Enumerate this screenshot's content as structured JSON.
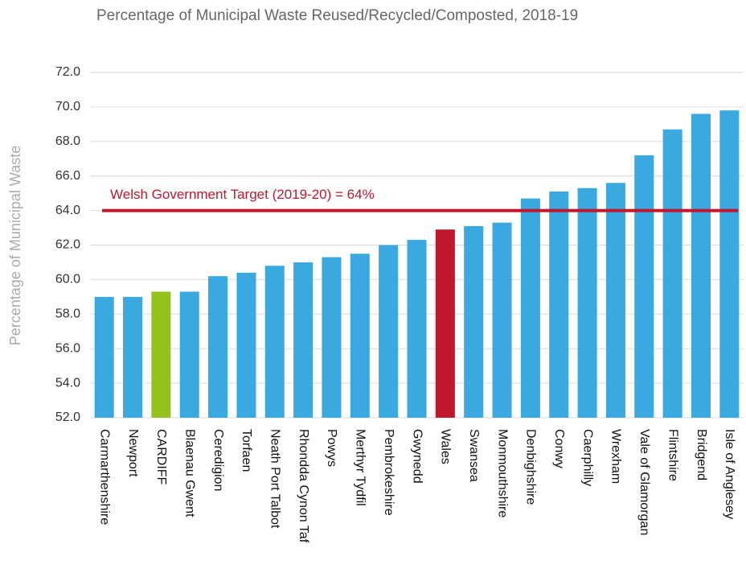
{
  "chart_data": {
    "type": "bar",
    "title": "Percentage of Municipal Waste Reused/Recycled/Composted, 2018-19",
    "ylabel": "Percentage of Municipal Waste",
    "categories": [
      "Carmarthenshire",
      "Newport",
      "CARDIFF",
      "Blaenau Gwent",
      "Ceredigion",
      "Torfaen",
      "Neath Port Talbot",
      "Rhondda Cynon Taf",
      "Powys",
      "Merthyr Tydfil",
      "Pembrokeshire",
      "Gwynedd",
      "Wales",
      "Swansea",
      "Monmouthshire",
      "Denbighshire",
      "Conwy",
      "Caerphilly",
      "Wrexham",
      "Vale of Glamorgan",
      "Flintshire",
      "Bridgend",
      "Isle of Anglesey"
    ],
    "values": [
      59.0,
      59.0,
      59.3,
      59.3,
      60.2,
      60.4,
      60.8,
      61.0,
      61.3,
      61.5,
      62.0,
      62.3,
      62.9,
      63.1,
      63.3,
      64.7,
      65.1,
      65.3,
      65.6,
      67.2,
      68.7,
      69.6,
      69.8
    ],
    "colors": [
      "#3aa9e0",
      "#3aa9e0",
      "#95c11f",
      "#3aa9e0",
      "#3aa9e0",
      "#3aa9e0",
      "#3aa9e0",
      "#3aa9e0",
      "#3aa9e0",
      "#3aa9e0",
      "#3aa9e0",
      "#3aa9e0",
      "#c0172d",
      "#3aa9e0",
      "#3aa9e0",
      "#3aa9e0",
      "#3aa9e0",
      "#3aa9e0",
      "#3aa9e0",
      "#3aa9e0",
      "#3aa9e0",
      "#3aa9e0",
      "#3aa9e0"
    ],
    "ylim": [
      52,
      72
    ],
    "yticks": [
      {
        "value": 52,
        "label": "52.0"
      },
      {
        "value": 54,
        "label": "54.0"
      },
      {
        "value": 56,
        "label": "56.0"
      },
      {
        "value": 58,
        "label": "58.0"
      },
      {
        "value": 60,
        "label": "60.0"
      },
      {
        "value": 62,
        "label": "62.0"
      },
      {
        "value": 64,
        "label": "64.0"
      },
      {
        "value": 66,
        "label": "66.0"
      },
      {
        "value": 68,
        "label": "68.0"
      },
      {
        "value": 70,
        "label": "70.0"
      },
      {
        "value": 72,
        "label": "72.0"
      }
    ],
    "grid": true,
    "target": {
      "text": "Welsh Government Target (2019-20) = 64%",
      "value": 64,
      "color": "#c0172d"
    }
  }
}
